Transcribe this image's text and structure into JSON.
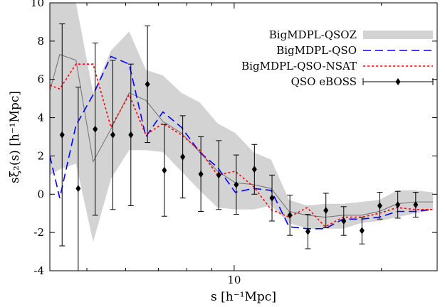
{
  "chart_data": {
    "type": "line",
    "xlabel": "s [h⁻¹Mpc]",
    "ylabel": "sξ₂(s) [h⁻¹Mpc]",
    "xscale": "log",
    "xlim": [
      4.2,
      26
    ],
    "ylim": [
      -4,
      10
    ],
    "xticks": [
      10
    ],
    "yticks": [
      -4,
      -2,
      0,
      2,
      4,
      6,
      8,
      10
    ],
    "grid": false,
    "legend_position": "top-right",
    "band": {
      "name": "BigMDPL-QSOZ",
      "color": "#d3d3d3",
      "median_color": "#707070",
      "x": [
        4.2,
        4.4,
        4.75,
        5.15,
        5.6,
        6.1,
        6.6,
        7.15,
        7.8,
        8.5,
        9.25,
        10.05,
        10.95,
        11.9,
        12.95,
        14.1,
        15.35,
        16.7,
        18.2,
        19.8,
        21.55,
        23.45,
        25.5
      ],
      "lower": [
        1.0,
        1.3,
        1.6,
        -2.5,
        0.8,
        2.3,
        2.3,
        2.2,
        1.2,
        0.2,
        -0.7,
        -0.8,
        -0.8,
        -0.6,
        -1.5,
        -1.8,
        -1.8,
        -1.8,
        -1.5,
        -1.4,
        -1.2,
        -1.0,
        -0.8
      ],
      "upper": [
        10,
        10,
        10,
        5.3,
        7.5,
        8.5,
        6.5,
        6.2,
        5.3,
        4.8,
        3.7,
        3.2,
        2.2,
        1.8,
        -0.3,
        -0.6,
        -0.5,
        -0.5,
        -0.4,
        -0.3,
        0.2,
        0.2,
        0.1
      ],
      "median": [
        5.4,
        7.3,
        7.0,
        1.7,
        3.4,
        5.3,
        4.9,
        3.8,
        3.2,
        2.2,
        1.2,
        0.6,
        0.5,
        0.3,
        -0.9,
        -1.1,
        -1.2,
        -1.1,
        -1.1,
        -0.9,
        -0.5,
        -0.4,
        -0.4
      ]
    },
    "series": [
      {
        "name": "BigMDPL-QSO",
        "color": "#0000ff",
        "style": "dashed",
        "x": [
          4.2,
          4.4,
          4.75,
          5.15,
          5.6,
          6.1,
          6.6,
          7.15,
          7.8,
          8.5,
          9.25,
          10.05,
          10.95,
          11.9,
          12.95,
          14.1,
          15.35,
          16.7,
          18.2,
          19.8,
          21.55,
          23.45,
          25.5
        ],
        "values": [
          2.0,
          -0.2,
          3.6,
          5.2,
          7.2,
          6.8,
          3.0,
          4.3,
          3.5,
          2.2,
          1.4,
          0.1,
          0.3,
          0.2,
          -1.7,
          -1.8,
          -1.8,
          -1.3,
          -1.3,
          -1.2,
          -0.9,
          -0.9,
          -0.8
        ]
      },
      {
        "name": "BigMDPL-QSO-NSAT",
        "color": "#ff0000",
        "style": "dotted",
        "x": [
          4.2,
          4.4,
          4.75,
          5.15,
          5.6,
          6.1,
          6.6,
          7.15,
          7.8,
          8.5,
          9.25,
          10.05,
          10.95,
          11.9,
          12.95,
          14.1,
          15.35,
          16.7,
          18.2,
          19.8,
          21.55,
          23.45,
          25.5
        ],
        "values": [
          5.7,
          5.5,
          6.8,
          6.8,
          3.5,
          5.2,
          3.1,
          3.7,
          3.1,
          2.3,
          1.0,
          1.2,
          0.4,
          -0.8,
          -1.2,
          -0.7,
          -1.7,
          -1.2,
          -1.2,
          -1.0,
          -0.7,
          -0.8,
          -0.8
        ]
      }
    ],
    "errorbars": {
      "name": "QSO eBOSS",
      "color": "#000000",
      "x": [
        4.45,
        4.8,
        5.2,
        5.65,
        6.15,
        6.65,
        7.2,
        7.85,
        8.55,
        9.3,
        10.1,
        11.0,
        11.95,
        13.0,
        14.15,
        15.4,
        16.75,
        18.25,
        19.85,
        21.6,
        23.5
      ],
      "y": [
        3.1,
        0.3,
        3.4,
        3.1,
        3.1,
        5.75,
        1.25,
        1.95,
        1.05,
        1.0,
        0.5,
        1.3,
        -0.2,
        -1.1,
        -1.95,
        -0.85,
        -1.4,
        -1.9,
        -0.6,
        -0.55,
        -0.55
      ],
      "err": [
        5.8,
        5.3,
        4.5,
        3.9,
        3.7,
        3.05,
        2.4,
        2.15,
        1.95,
        1.8,
        1.55,
        1.3,
        1.2,
        1.05,
        0.9,
        0.9,
        0.75,
        0.7,
        0.7,
        0.7,
        0.65
      ]
    }
  }
}
